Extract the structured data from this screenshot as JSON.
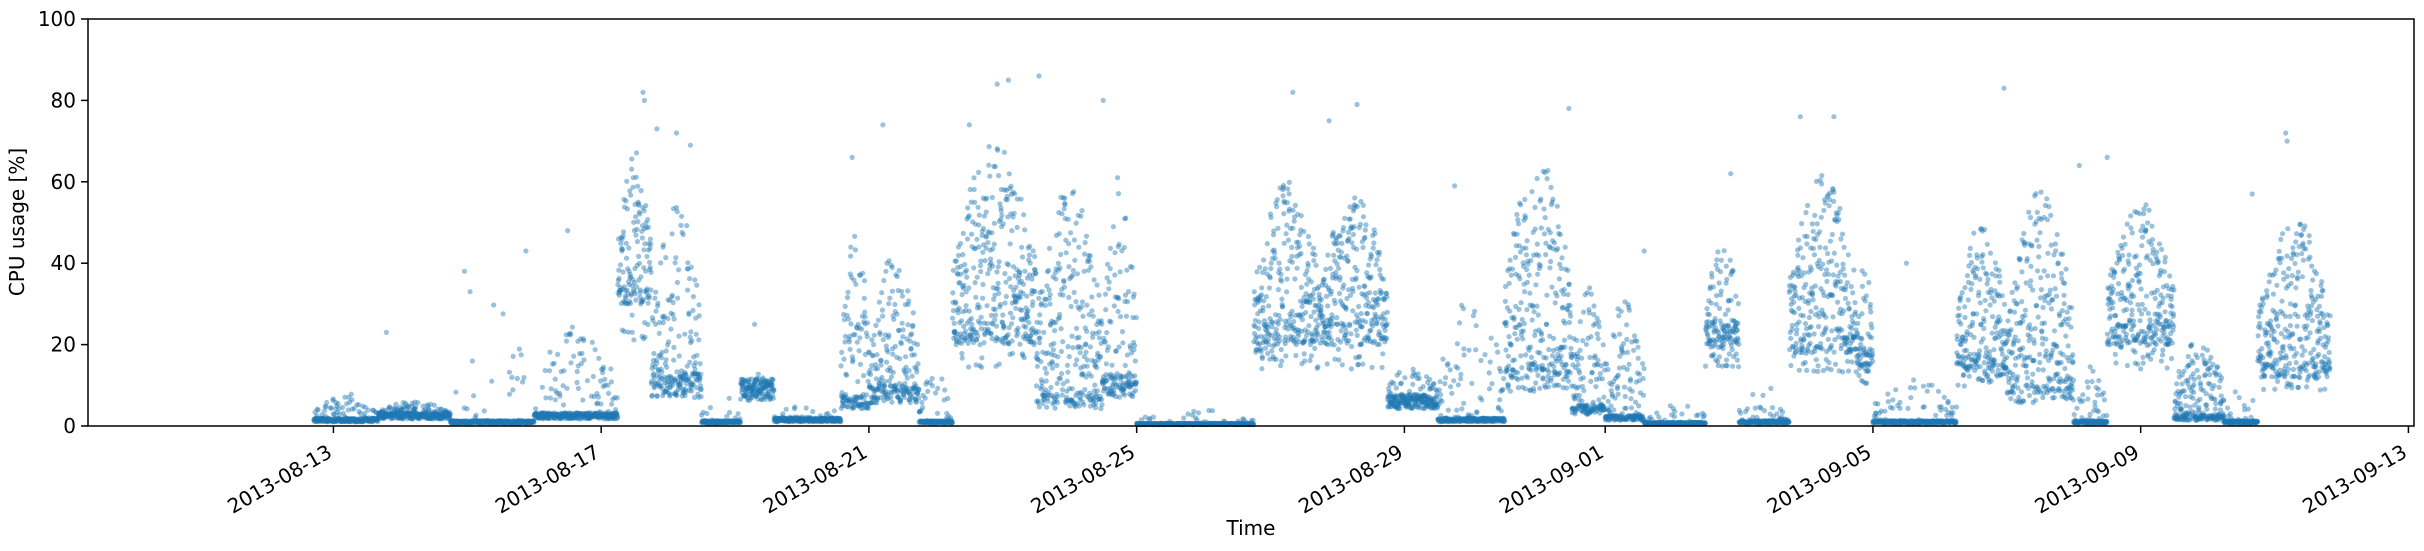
{
  "chart_data": {
    "type": "scatter",
    "xlabel": "Time",
    "ylabel": "CPU usage [%]",
    "ylim": [
      0,
      100
    ],
    "xlim": [
      "2013-08-09T08:00",
      "2013-09-13T02:00"
    ],
    "grid": false,
    "marker_color": "#1f77b4",
    "marker_alpha": 0.45,
    "x_ticks": [
      "2013-08-13",
      "2013-08-17",
      "2013-08-21",
      "2013-08-25",
      "2013-08-29",
      "2013-09-01",
      "2013-09-05",
      "2013-09-09",
      "2013-09-13"
    ],
    "y_ticks": [
      0,
      20,
      40,
      60,
      80,
      100
    ],
    "outliers": [
      {
        "x": "2013-08-13T19:00",
        "y": 23
      },
      {
        "x": "2013-08-14T23:00",
        "y": 38
      },
      {
        "x": "2013-08-15T01:00",
        "y": 33
      },
      {
        "x": "2013-08-15T21:00",
        "y": 43
      },
      {
        "x": "2013-08-16T12:00",
        "y": 48
      },
      {
        "x": "2013-08-17T15:00",
        "y": 82
      },
      {
        "x": "2013-08-17T15:30",
        "y": 80
      },
      {
        "x": "2013-08-17T20:00",
        "y": 73
      },
      {
        "x": "2013-08-18T03:00",
        "y": 72
      },
      {
        "x": "2013-08-18T08:00",
        "y": 69
      },
      {
        "x": "2013-08-19T07:00",
        "y": 25
      },
      {
        "x": "2013-08-20T18:00",
        "y": 66
      },
      {
        "x": "2013-08-21T05:00",
        "y": 74
      },
      {
        "x": "2013-08-22T12:00",
        "y": 74
      },
      {
        "x": "2013-08-22T22:00",
        "y": 84
      },
      {
        "x": "2013-08-23T02:00",
        "y": 85
      },
      {
        "x": "2013-08-23T13:00",
        "y": 86
      },
      {
        "x": "2013-08-24T12:00",
        "y": 80
      },
      {
        "x": "2013-08-27T08:00",
        "y": 82
      },
      {
        "x": "2013-08-27T21:00",
        "y": 75
      },
      {
        "x": "2013-08-28T07:00",
        "y": 79
      },
      {
        "x": "2013-08-29T18:00",
        "y": 59
      },
      {
        "x": "2013-08-31T11:00",
        "y": 78
      },
      {
        "x": "2013-09-01T14:00",
        "y": 43
      },
      {
        "x": "2013-09-02T21:00",
        "y": 62
      },
      {
        "x": "2013-09-03T22:00",
        "y": 76
      },
      {
        "x": "2013-09-04T10:00",
        "y": 76
      },
      {
        "x": "2013-09-05T12:00",
        "y": 40
      },
      {
        "x": "2013-09-06T09:00",
        "y": 34
      },
      {
        "x": "2013-09-06T23:00",
        "y": 83
      },
      {
        "x": "2013-09-08T02:00",
        "y": 64
      },
      {
        "x": "2013-09-08T12:00",
        "y": 66
      },
      {
        "x": "2013-09-10T16:00",
        "y": 57
      },
      {
        "x": "2013-09-11T04:00",
        "y": 72
      },
      {
        "x": "2013-09-11T04:30",
        "y": 70
      }
    ],
    "segments": [
      {
        "start": "2013-08-12T17:00",
        "end": "2013-08-13T16:00",
        "base": 1.5,
        "peak": 8,
        "spread": 0.3
      },
      {
        "start": "2013-08-13T16:00",
        "end": "2013-08-14T18:00",
        "base": 2.5,
        "peak": 6,
        "spread": 0.35
      },
      {
        "start": "2013-08-14T18:00",
        "end": "2013-08-16T00:00",
        "base": 1.0,
        "peak": 30,
        "spread": 0.08
      },
      {
        "start": "2013-08-16T00:00",
        "end": "2013-08-17T06:00",
        "base": 2.5,
        "peak": 25,
        "spread": 0.2
      },
      {
        "start": "2013-08-17T06:00",
        "end": "2013-08-17T18:00",
        "base": 30,
        "peak": 68,
        "spread": 0.85
      },
      {
        "start": "2013-08-17T18:00",
        "end": "2013-08-18T12:00",
        "base": 10,
        "peak": 55,
        "spread": 0.6
      },
      {
        "start": "2013-08-18T12:00",
        "end": "2013-08-19T02:00",
        "base": 1.0,
        "peak": 8,
        "spread": 0.1
      },
      {
        "start": "2013-08-19T02:00",
        "end": "2013-08-19T14:00",
        "base": 9,
        "peak": 13,
        "spread": 0.1
      },
      {
        "start": "2013-08-19T14:00",
        "end": "2013-08-20T14:00",
        "base": 1.5,
        "peak": 6,
        "spread": 0.1
      },
      {
        "start": "2013-08-20T14:00",
        "end": "2013-08-21T00:00",
        "base": 6,
        "peak": 50,
        "spread": 0.55
      },
      {
        "start": "2013-08-21T00:00",
        "end": "2013-08-21T18:00",
        "base": 8,
        "peak": 42,
        "spread": 0.55
      },
      {
        "start": "2013-08-21T18:00",
        "end": "2013-08-22T06:00",
        "base": 1,
        "peak": 14,
        "spread": 0.2
      },
      {
        "start": "2013-08-22T06:00",
        "end": "2013-08-23T12:00",
        "base": 20,
        "peak": 70,
        "spread": 0.9
      },
      {
        "start": "2013-08-23T12:00",
        "end": "2013-08-24T12:00",
        "base": 6,
        "peak": 60,
        "spread": 0.8
      },
      {
        "start": "2013-08-24T12:00",
        "end": "2013-08-25T00:00",
        "base": 10,
        "peak": 62,
        "spread": 0.6
      },
      {
        "start": "2013-08-25T00:00",
        "end": "2013-08-26T18:00",
        "base": 0.5,
        "peak": 4,
        "spread": 0.05
      },
      {
        "start": "2013-08-26T18:00",
        "end": "2013-08-27T18:00",
        "base": 20,
        "peak": 60,
        "spread": 0.8
      },
      {
        "start": "2013-08-27T18:00",
        "end": "2013-08-28T18:00",
        "base": 20,
        "peak": 58,
        "spread": 0.85
      },
      {
        "start": "2013-08-28T18:00",
        "end": "2013-08-29T12:00",
        "base": 6,
        "peak": 15,
        "spread": 0.3
      },
      {
        "start": "2013-08-29T12:00",
        "end": "2013-08-30T12:00",
        "base": 1.5,
        "peak": 32,
        "spread": 0.25
      },
      {
        "start": "2013-08-30T12:00",
        "end": "2013-08-31T12:00",
        "base": 12,
        "peak": 68,
        "spread": 0.85
      },
      {
        "start": "2013-08-31T12:00",
        "end": "2013-09-01T00:00",
        "base": 4,
        "peak": 38,
        "spread": 0.6
      },
      {
        "start": "2013-09-01T00:00",
        "end": "2013-09-01T14:00",
        "base": 2,
        "peak": 32,
        "spread": 0.5
      },
      {
        "start": "2013-09-01T14:00",
        "end": "2013-09-02T12:00",
        "base": 0.7,
        "peak": 6,
        "spread": 0.08
      },
      {
        "start": "2013-09-02T12:00",
        "end": "2013-09-03T00:00",
        "base": 20,
        "peak": 45,
        "spread": 0.55
      },
      {
        "start": "2013-09-03T00:00",
        "end": "2013-09-03T18:00",
        "base": 1.0,
        "peak": 10,
        "spread": 0.12
      },
      {
        "start": "2013-09-03T18:00",
        "end": "2013-09-04T18:00",
        "base": 18,
        "peak": 62,
        "spread": 0.85
      },
      {
        "start": "2013-09-04T18:00",
        "end": "2013-09-05T00:00",
        "base": 15,
        "peak": 40,
        "spread": 0.55
      },
      {
        "start": "2013-09-05T00:00",
        "end": "2013-09-06T06:00",
        "base": 1.0,
        "peak": 12,
        "spread": 0.15
      },
      {
        "start": "2013-09-06T06:00",
        "end": "2013-09-07T00:00",
        "base": 14,
        "peak": 50,
        "spread": 0.75
      },
      {
        "start": "2013-09-07T00:00",
        "end": "2013-09-08T00:00",
        "base": 8,
        "peak": 58,
        "spread": 0.85
      },
      {
        "start": "2013-09-08T00:00",
        "end": "2013-09-08T12:00",
        "base": 1,
        "peak": 15,
        "spread": 0.2
      },
      {
        "start": "2013-09-08T12:00",
        "end": "2013-09-09T12:00",
        "base": 20,
        "peak": 55,
        "spread": 0.85
      },
      {
        "start": "2013-09-09T12:00",
        "end": "2013-09-10T06:00",
        "base": 2,
        "peak": 22,
        "spread": 0.6
      },
      {
        "start": "2013-09-10T06:00",
        "end": "2013-09-10T18:00",
        "base": 1,
        "peak": 10,
        "spread": 0.15
      },
      {
        "start": "2013-09-10T18:00",
        "end": "2013-09-11T20:00",
        "base": 12,
        "peak": 52,
        "spread": 0.85
      }
    ]
  }
}
